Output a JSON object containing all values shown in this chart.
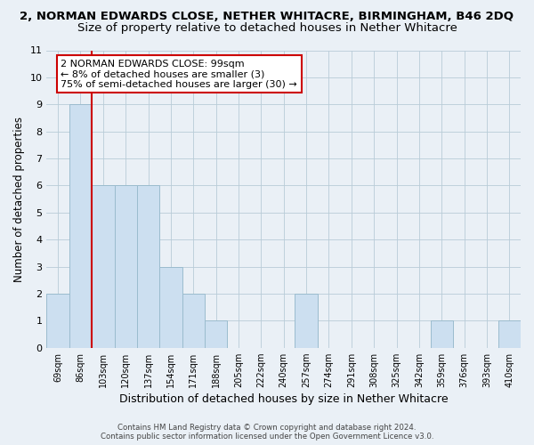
{
  "title_line1": "2, NORMAN EDWARDS CLOSE, NETHER WHITACRE, BIRMINGHAM, B46 2DQ",
  "title_line2": "Size of property relative to detached houses in Nether Whitacre",
  "xlabel": "Distribution of detached houses by size in Nether Whitacre",
  "ylabel": "Number of detached properties",
  "categories": [
    "69sqm",
    "86sqm",
    "103sqm",
    "120sqm",
    "137sqm",
    "154sqm",
    "171sqm",
    "188sqm",
    "205sqm",
    "222sqm",
    "240sqm",
    "257sqm",
    "274sqm",
    "291sqm",
    "308sqm",
    "325sqm",
    "342sqm",
    "359sqm",
    "376sqm",
    "393sqm",
    "410sqm"
  ],
  "values": [
    2,
    9,
    6,
    6,
    6,
    3,
    2,
    1,
    0,
    0,
    0,
    2,
    0,
    0,
    0,
    0,
    0,
    1,
    0,
    0,
    1
  ],
  "bar_color": "#ccdff0",
  "bar_edge_color": "#9bbcce",
  "red_line_index": 2,
  "ylim": [
    0,
    11
  ],
  "yticks": [
    0,
    1,
    2,
    3,
    4,
    5,
    6,
    7,
    8,
    9,
    10,
    11
  ],
  "annotation_title": "2 NORMAN EDWARDS CLOSE: 99sqm",
  "annotation_line1": "← 8% of detached houses are smaller (3)",
  "annotation_line2": "75% of semi-detached houses are larger (30) →",
  "annotation_box_facecolor": "#ffffff",
  "annotation_box_edgecolor": "#cc0000",
  "red_line_color": "#cc0000",
  "footer1": "Contains HM Land Registry data © Crown copyright and database right 2024.",
  "footer2": "Contains public sector information licensed under the Open Government Licence v3.0.",
  "bg_color": "#eaf0f6",
  "grid_color": "#b8ccd8",
  "title_fontsize": 9.5,
  "subtitle_fontsize": 9.5,
  "ylabel_fontsize": 8.5,
  "xlabel_fontsize": 9
}
